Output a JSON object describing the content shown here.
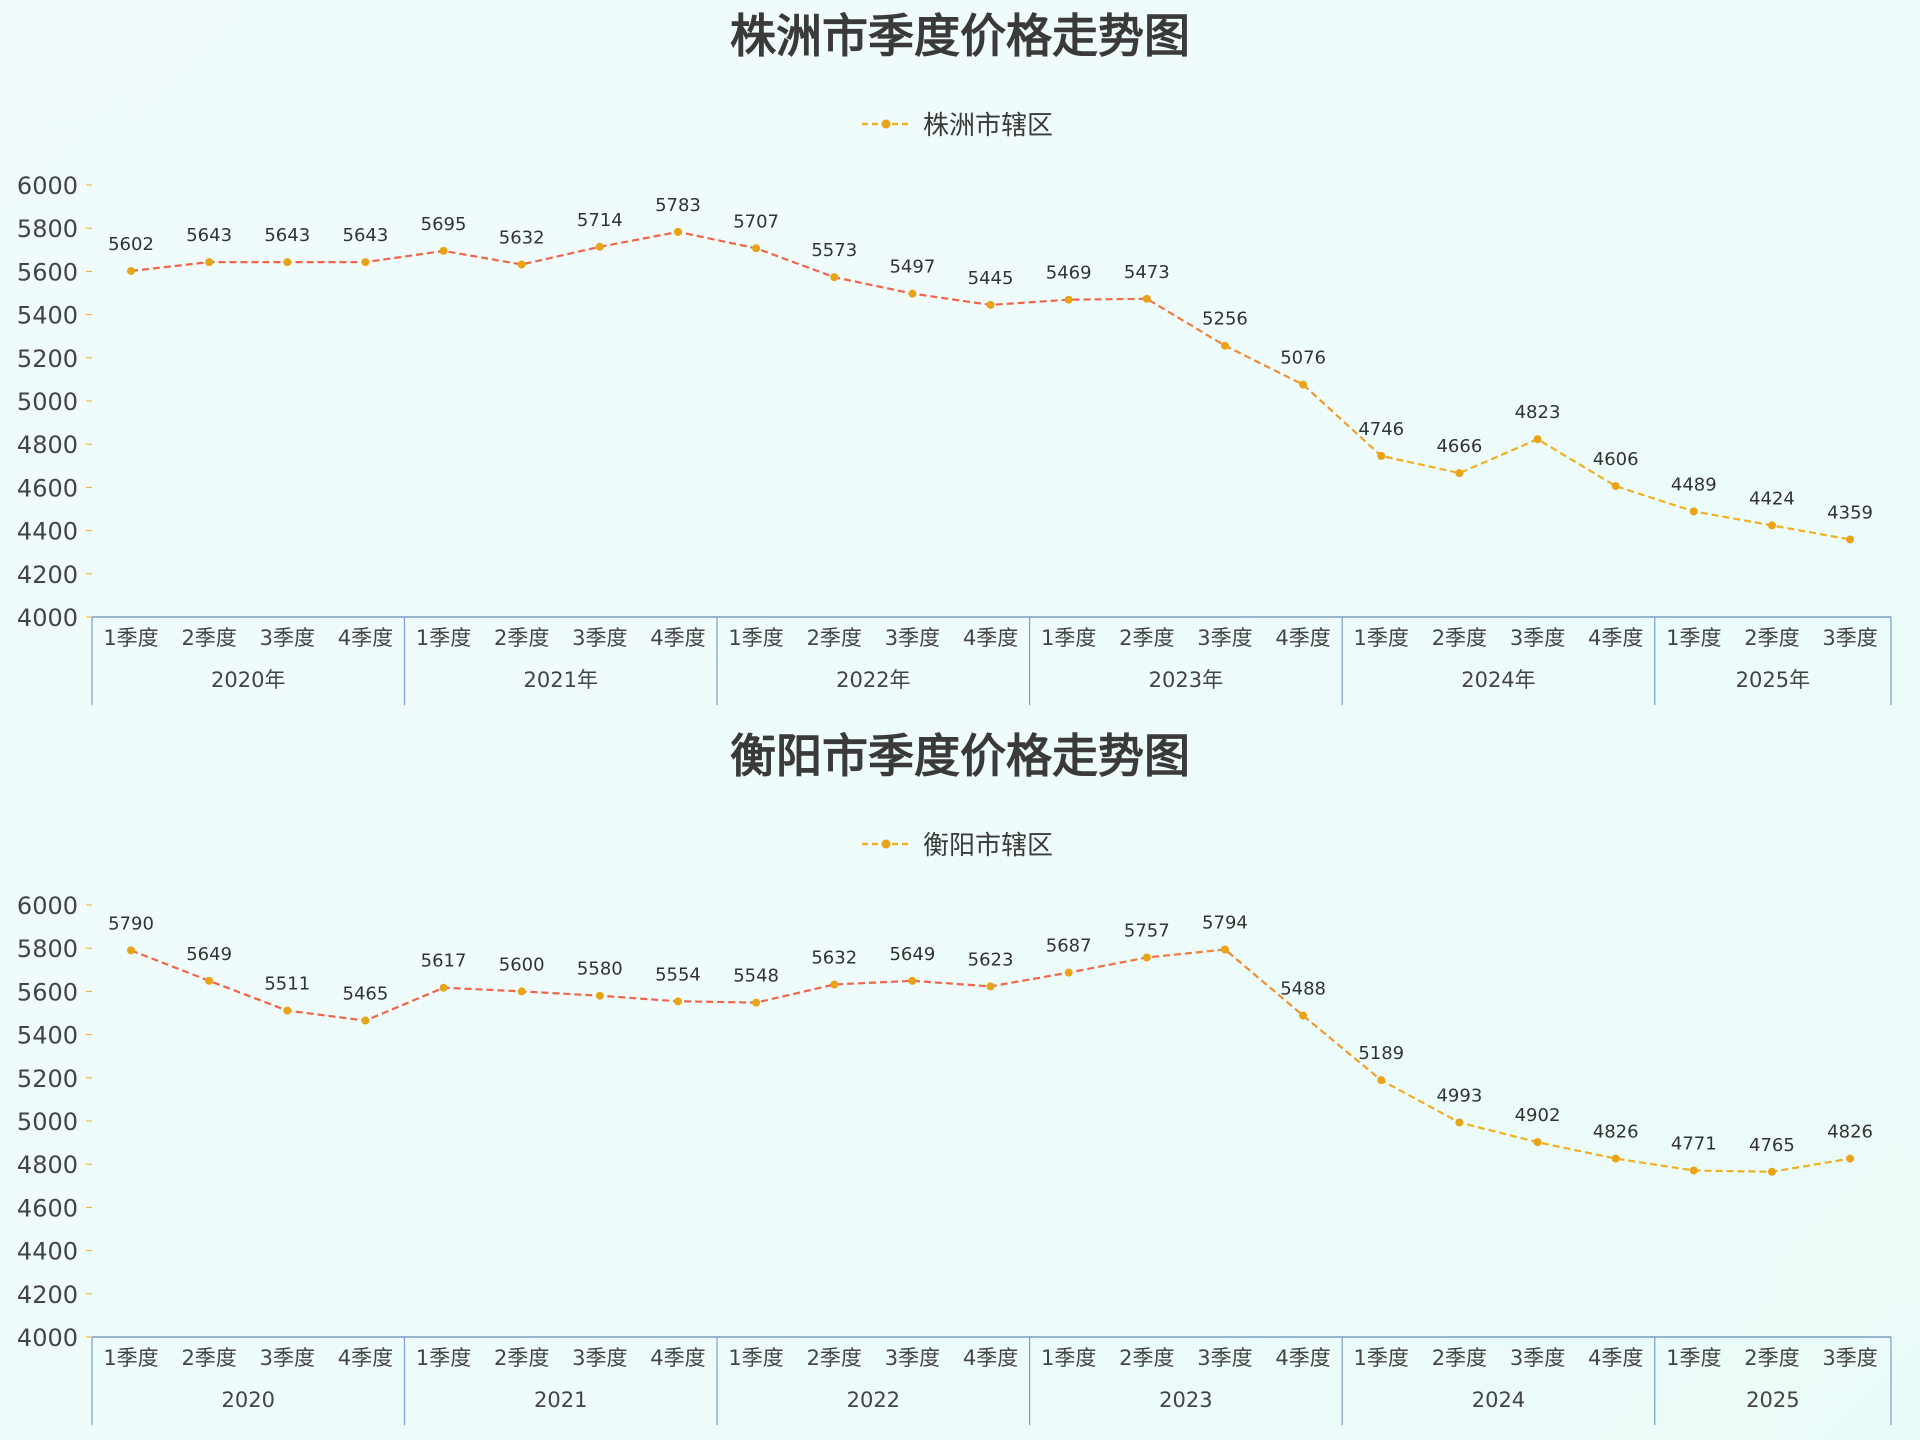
{
  "chart_data": [
    {
      "type": "line",
      "title": "株洲市季度价格走势图",
      "legend": "株洲市辖区",
      "quarters": [
        "1季度",
        "2季度",
        "3季度",
        "4季度",
        "1季度",
        "2季度",
        "3季度",
        "4季度",
        "1季度",
        "2季度",
        "3季度",
        "4季度",
        "1季度",
        "2季度",
        "3季度",
        "4季度",
        "1季度",
        "2季度",
        "3季度",
        "4季度",
        "1季度",
        "2季度",
        "3季度"
      ],
      "years": [
        {
          "label": "2020年",
          "count": 4
        },
        {
          "label": "2021年",
          "count": 4
        },
        {
          "label": "2022年",
          "count": 4
        },
        {
          "label": "2023年",
          "count": 4
        },
        {
          "label": "2024年",
          "count": 4
        },
        {
          "label": "2025年",
          "count": 3
        }
      ],
      "series": [
        {
          "name": "株洲市辖区",
          "values": [
            5602,
            5643,
            5643,
            5643,
            5695,
            5632,
            5714,
            5783,
            5707,
            5573,
            5497,
            5445,
            5469,
            5473,
            5256,
            5076,
            4746,
            4666,
            4823,
            4606,
            4489,
            4424,
            4359
          ]
        }
      ],
      "ylim": [
        4000,
        6000
      ],
      "yticks": [
        "6000",
        "5800",
        "5600",
        "5400",
        "5200",
        "5000",
        "4800",
        "4600",
        "4400",
        "4200",
        "4000"
      ],
      "legend_position": "top-center",
      "grid": false
    },
    {
      "type": "line",
      "title": "衡阳市季度价格走势图",
      "legend": "衡阳市辖区",
      "quarters": [
        "1季度",
        "2季度",
        "3季度",
        "4季度",
        "1季度",
        "2季度",
        "3季度",
        "4季度",
        "1季度",
        "2季度",
        "3季度",
        "4季度",
        "1季度",
        "2季度",
        "3季度",
        "4季度",
        "1季度",
        "2季度",
        "3季度",
        "4季度",
        "1季度",
        "2季度",
        "3季度"
      ],
      "years": [
        {
          "label": "2020",
          "count": 4
        },
        {
          "label": "2021",
          "count": 4
        },
        {
          "label": "2022",
          "count": 4
        },
        {
          "label": "2023",
          "count": 4
        },
        {
          "label": "2024",
          "count": 4
        },
        {
          "label": "2025",
          "count": 3
        }
      ],
      "series": [
        {
          "name": "衡阳市辖区",
          "values": [
            5790,
            5649,
            5511,
            5465,
            5617,
            5600,
            5580,
            5554,
            5548,
            5632,
            5649,
            5623,
            5687,
            5757,
            5794,
            5488,
            5189,
            4993,
            4902,
            4826,
            4771,
            4765,
            4826
          ]
        }
      ],
      "ylim": [
        4000,
        6000
      ],
      "yticks": [
        "6000",
        "5800",
        "5600",
        "5400",
        "5200",
        "5000",
        "4800",
        "4600",
        "4400",
        "4200",
        "4000"
      ],
      "legend_position": "top-center",
      "grid": false
    }
  ],
  "colors": {
    "line_start": "#f0644a",
    "line_end": "#f0b020",
    "marker": "#e8a317",
    "axis": "#7a9cc6",
    "text": "#3a3a3a"
  }
}
